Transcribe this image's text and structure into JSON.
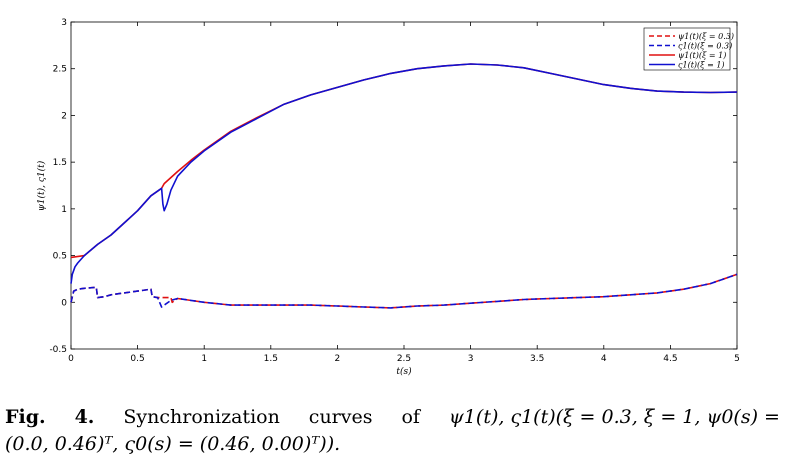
{
  "chart_data": {
    "type": "line",
    "title": "",
    "xlabel": "t(s)",
    "ylabel": "ψ1(t), ς1(t)",
    "xlim": [
      0,
      5
    ],
    "ylim": [
      -0.5,
      3
    ],
    "xticks": [
      0,
      0.5,
      1,
      1.5,
      2,
      2.5,
      3,
      3.5,
      4,
      4.5,
      5
    ],
    "yticks": [
      -0.5,
      0,
      0.5,
      1,
      1.5,
      2,
      2.5,
      3
    ],
    "xtick_labels": [
      "0",
      "0.5",
      "1",
      "1.5",
      "2",
      "2.5",
      "3",
      "3.5",
      "4",
      "4.5",
      "5"
    ],
    "ytick_labels": [
      "-0.5",
      "0",
      "0.5",
      "1",
      "1.5",
      "2",
      "2.5",
      "3"
    ],
    "grid": false,
    "legend_position": "top-right",
    "series": [
      {
        "name": "ψ1(t)(ξ = 0.3)",
        "color": "#e01010",
        "style": "dashed",
        "points": [
          [
            0,
            0
          ],
          [
            0.02,
            0.12
          ],
          [
            0.05,
            0.14
          ],
          [
            0.1,
            0.15
          ],
          [
            0.19,
            0.16
          ],
          [
            0.2,
            0.05
          ],
          [
            0.25,
            0.06
          ],
          [
            0.3,
            0.08
          ],
          [
            0.4,
            0.1
          ],
          [
            0.5,
            0.12
          ],
          [
            0.6,
            0.14
          ],
          [
            0.61,
            0.06
          ],
          [
            0.65,
            0.05
          ],
          [
            0.7,
            0.05
          ],
          [
            0.75,
            0.05
          ],
          [
            0.76,
            0.0
          ],
          [
            0.8,
            0.04
          ],
          [
            0.9,
            0.02
          ],
          [
            1.0,
            0.0
          ],
          [
            1.2,
            -0.03
          ],
          [
            1.5,
            -0.03
          ],
          [
            1.8,
            -0.03
          ],
          [
            2.0,
            -0.04
          ],
          [
            2.2,
            -0.05
          ],
          [
            2.4,
            -0.06
          ],
          [
            2.6,
            -0.04
          ],
          [
            2.8,
            -0.03
          ],
          [
            3.0,
            -0.01
          ],
          [
            3.2,
            0.01
          ],
          [
            3.4,
            0.03
          ],
          [
            3.6,
            0.04
          ],
          [
            3.8,
            0.05
          ],
          [
            4.0,
            0.06
          ],
          [
            4.2,
            0.08
          ],
          [
            4.4,
            0.1
          ],
          [
            4.6,
            0.14
          ],
          [
            4.8,
            0.2
          ],
          [
            5.0,
            0.3
          ]
        ]
      },
      {
        "name": "ς1(t)(ξ = 0.3)",
        "color": "#1010d0",
        "style": "dashed",
        "points": [
          [
            0,
            0
          ],
          [
            0.02,
            0.12
          ],
          [
            0.05,
            0.14
          ],
          [
            0.1,
            0.15
          ],
          [
            0.19,
            0.16
          ],
          [
            0.2,
            0.05
          ],
          [
            0.25,
            0.06
          ],
          [
            0.3,
            0.08
          ],
          [
            0.4,
            0.1
          ],
          [
            0.5,
            0.12
          ],
          [
            0.6,
            0.14
          ],
          [
            0.61,
            0.06
          ],
          [
            0.65,
            0.05
          ],
          [
            0.68,
            -0.05
          ],
          [
            0.7,
            -0.03
          ],
          [
            0.75,
            0.02
          ],
          [
            0.8,
            0.04
          ],
          [
            0.9,
            0.02
          ],
          [
            1.0,
            0.0
          ],
          [
            1.2,
            -0.03
          ],
          [
            1.5,
            -0.03
          ],
          [
            1.8,
            -0.03
          ],
          [
            2.0,
            -0.04
          ],
          [
            2.2,
            -0.05
          ],
          [
            2.4,
            -0.06
          ],
          [
            2.6,
            -0.04
          ],
          [
            2.8,
            -0.03
          ],
          [
            3.0,
            -0.01
          ],
          [
            3.2,
            0.01
          ],
          [
            3.4,
            0.03
          ],
          [
            3.6,
            0.04
          ],
          [
            3.8,
            0.05
          ],
          [
            4.0,
            0.06
          ],
          [
            4.2,
            0.08
          ],
          [
            4.4,
            0.1
          ],
          [
            4.6,
            0.14
          ],
          [
            4.8,
            0.2
          ],
          [
            5.0,
            0.3
          ]
        ]
      },
      {
        "name": "ψ1(t)(ξ = 1)",
        "color": "#e01010",
        "style": "solid",
        "points": [
          [
            0,
            0.48
          ],
          [
            0.1,
            0.5
          ],
          [
            0.2,
            0.62
          ],
          [
            0.3,
            0.72
          ],
          [
            0.4,
            0.85
          ],
          [
            0.5,
            0.98
          ],
          [
            0.6,
            1.14
          ],
          [
            0.68,
            1.22
          ],
          [
            0.7,
            1.27
          ],
          [
            0.8,
            1.4
          ],
          [
            0.9,
            1.52
          ],
          [
            1.0,
            1.63
          ],
          [
            1.2,
            1.83
          ],
          [
            1.4,
            1.98
          ],
          [
            1.6,
            2.12
          ],
          [
            1.8,
            2.22
          ],
          [
            2.0,
            2.3
          ],
          [
            2.2,
            2.38
          ],
          [
            2.4,
            2.45
          ],
          [
            2.6,
            2.5
          ],
          [
            2.8,
            2.53
          ],
          [
            3.0,
            2.55
          ],
          [
            3.2,
            2.54
          ],
          [
            3.4,
            2.51
          ],
          [
            3.6,
            2.45
          ],
          [
            3.8,
            2.39
          ],
          [
            4.0,
            2.33
          ],
          [
            4.2,
            2.29
          ],
          [
            4.4,
            2.26
          ],
          [
            4.6,
            2.25
          ],
          [
            4.8,
            2.245
          ],
          [
            5.0,
            2.25
          ]
        ]
      },
      {
        "name": "ς1(t)(ξ = 1)",
        "color": "#1010d0",
        "style": "solid",
        "points": [
          [
            0,
            0.2
          ],
          [
            0.01,
            0.3
          ],
          [
            0.03,
            0.38
          ],
          [
            0.05,
            0.42
          ],
          [
            0.1,
            0.5
          ],
          [
            0.2,
            0.62
          ],
          [
            0.3,
            0.72
          ],
          [
            0.4,
            0.85
          ],
          [
            0.5,
            0.98
          ],
          [
            0.6,
            1.14
          ],
          [
            0.68,
            1.22
          ],
          [
            0.69,
            1.05
          ],
          [
            0.7,
            0.98
          ],
          [
            0.72,
            1.05
          ],
          [
            0.75,
            1.2
          ],
          [
            0.8,
            1.35
          ],
          [
            0.9,
            1.5
          ],
          [
            1.0,
            1.62
          ],
          [
            1.2,
            1.82
          ],
          [
            1.4,
            1.97
          ],
          [
            1.6,
            2.12
          ],
          [
            1.8,
            2.22
          ],
          [
            2.0,
            2.3
          ],
          [
            2.2,
            2.38
          ],
          [
            2.4,
            2.45
          ],
          [
            2.6,
            2.5
          ],
          [
            2.8,
            2.53
          ],
          [
            3.0,
            2.55
          ],
          [
            3.2,
            2.54
          ],
          [
            3.4,
            2.51
          ],
          [
            3.6,
            2.45
          ],
          [
            3.8,
            2.39
          ],
          [
            4.0,
            2.33
          ],
          [
            4.2,
            2.29
          ],
          [
            4.4,
            2.26
          ],
          [
            4.6,
            2.25
          ],
          [
            4.8,
            2.245
          ],
          [
            5.0,
            2.25
          ]
        ]
      }
    ]
  },
  "caption": {
    "fig_label": "Fig.",
    "fig_number": "4.",
    "word_1": "Synchronization",
    "word_2": "curves",
    "word_3": "of",
    "math_line1": "ψ1(t), ς1(t)(ξ = 0.3, ξ = 1, ψ0(s) =",
    "math_line2": "(0.0, 0.46)ᵀ, ς0(s) = (0.46, 0.00)ᵀ))."
  }
}
